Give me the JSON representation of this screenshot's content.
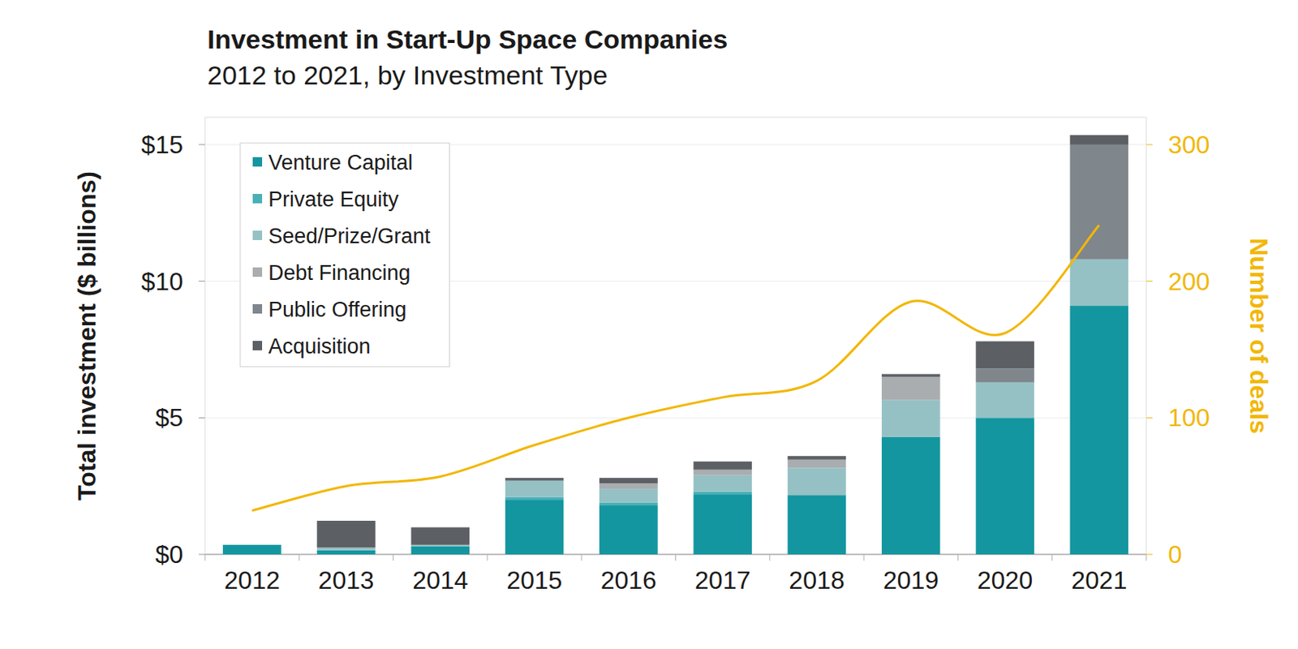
{
  "chart_data": {
    "type": "bar",
    "stacked": true,
    "title": "Investment in Start-Up Space Companies",
    "subtitle": "2012 to 2021, by Investment Type",
    "y_label": "Total investment ($ billions)",
    "y2_label": "Number of deals",
    "categories": [
      "2012",
      "2013",
      "2014",
      "2015",
      "2016",
      "2017",
      "2018",
      "2019",
      "2020",
      "2021"
    ],
    "ylim": [
      0,
      16
    ],
    "yticks": [
      {
        "value": 0,
        "label": "$0"
      },
      {
        "value": 5,
        "label": "$5"
      },
      {
        "value": 10,
        "label": "$10"
      },
      {
        "value": 15,
        "label": "$15"
      }
    ],
    "y2lim": [
      0,
      320
    ],
    "y2ticks": [
      0,
      100,
      200,
      300
    ],
    "grid": true,
    "legend": "top-left",
    "series": [
      {
        "name": "Venture Capital",
        "color": "#13969f",
        "values": [
          0.35,
          0.15,
          0.3,
          2.0,
          1.8,
          2.2,
          2.17,
          4.3,
          5.0,
          9.1
        ]
      },
      {
        "name": "Private Equity",
        "color": "#4ab0b8",
        "values": [
          0,
          0,
          0,
          0.1,
          0.1,
          0.1,
          0,
          0,
          0,
          0
        ]
      },
      {
        "name": "Seed/Prize/Grant",
        "color": "#95c1c4",
        "values": [
          0,
          0.1,
          0.05,
          0.6,
          0.5,
          0.6,
          1.0,
          1.35,
          1.3,
          1.7
        ]
      },
      {
        "name": "Debt Financing",
        "color": "#a9adb0",
        "values": [
          0,
          0,
          0,
          0,
          0.2,
          0.2,
          0.3,
          0.85,
          0,
          0
        ]
      },
      {
        "name": "Public Offering",
        "color": "#7f868c",
        "values": [
          0,
          0,
          0,
          0,
          0,
          0,
          0,
          0,
          0.5,
          4.2
        ]
      },
      {
        "name": "Acquisition",
        "color": "#5c6064",
        "values": [
          0,
          0.98,
          0.64,
          0.1,
          0.2,
          0.3,
          0.13,
          0.1,
          1.0,
          0.35
        ]
      },
      {
        "type": "line",
        "axis": "y2",
        "color": "#f2b705",
        "values": [
          32,
          50,
          57,
          80,
          100,
          115,
          127,
          185,
          162,
          241
        ]
      }
    ]
  }
}
